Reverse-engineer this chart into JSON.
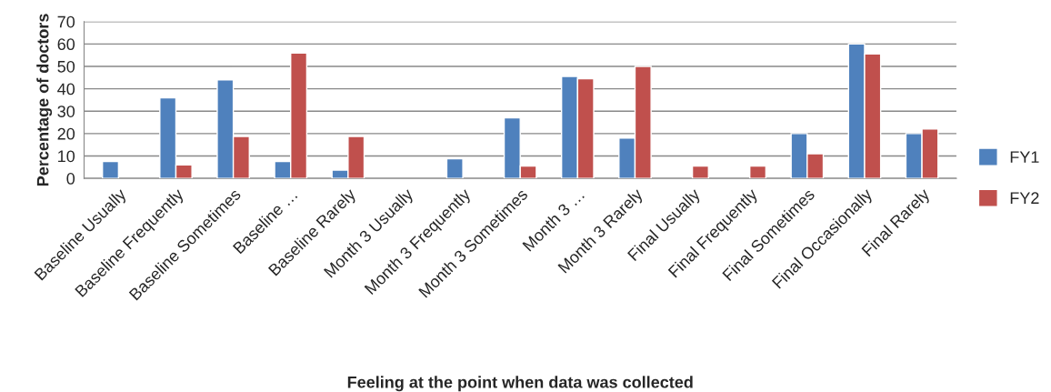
{
  "chart_data": {
    "type": "bar",
    "xlabel": "Feeling at the point when data was collected",
    "ylabel": "Percentage of doctors",
    "categories": [
      "Baseline Usually",
      "Baseline Frequently",
      "Baseline Sometimes",
      "Baseline …",
      "Baseline Rarely",
      "Month 3 Usually",
      "Month 3 Frequently",
      "Month 3 Sometimes",
      "Month 3 …",
      "Month 3 Rarely",
      "Final Usually",
      "Final Frequently",
      "Final Sometimes",
      "Final Occasionally",
      "Final Rarely"
    ],
    "series": [
      {
        "name": "FY1",
        "color": "#4f81bd",
        "values": [
          7.5,
          36,
          44,
          7.5,
          3.7,
          null,
          8.7,
          27,
          45.5,
          18,
          null,
          null,
          20,
          60,
          20
        ]
      },
      {
        "name": "FY2",
        "color": "#c0504d",
        "values": [
          null,
          6,
          18.7,
          56,
          18.7,
          null,
          null,
          5.5,
          44.5,
          50,
          5.5,
          5.5,
          11,
          55.5,
          22
        ]
      }
    ],
    "ylim": [
      0,
      70
    ],
    "yticks": [
      0,
      10,
      20,
      30,
      40,
      50,
      60,
      70
    ],
    "grid": "y",
    "legend": "right"
  }
}
